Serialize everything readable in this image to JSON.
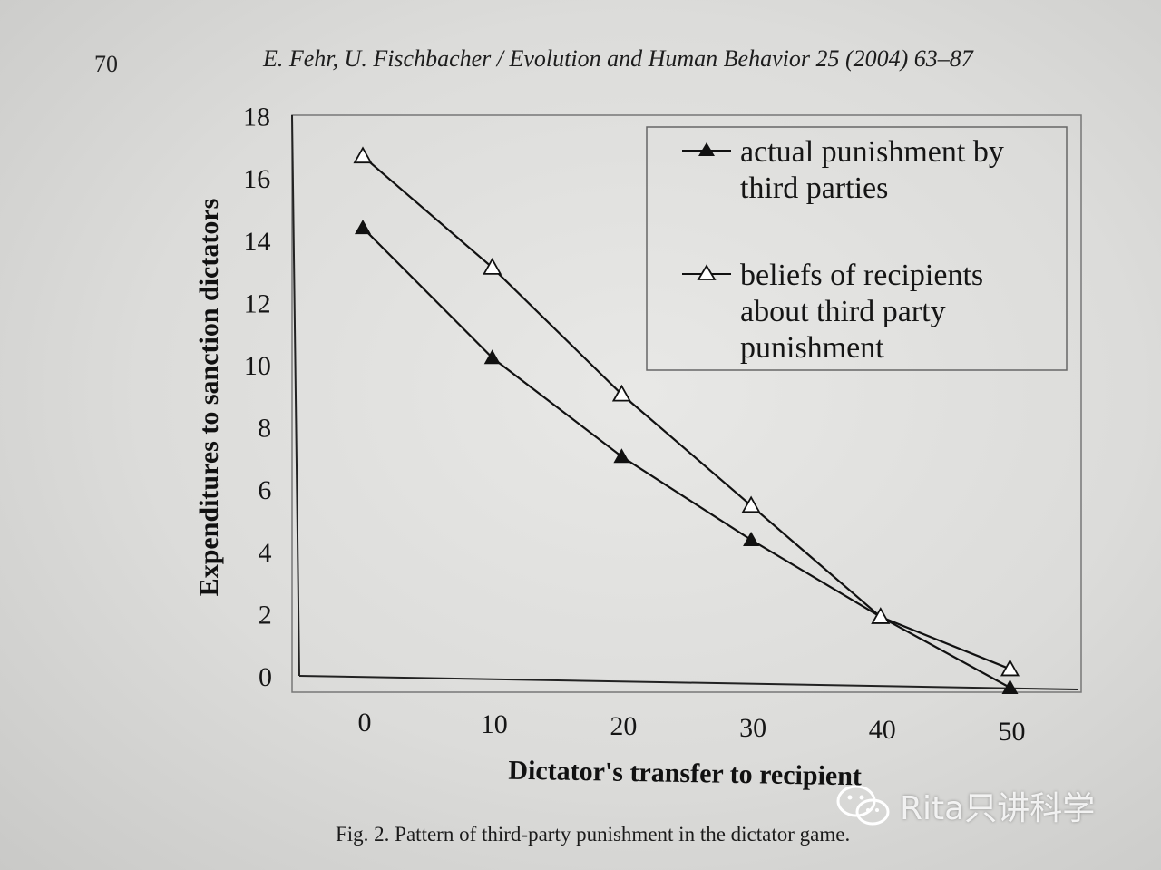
{
  "header": {
    "page_number": "70",
    "running_title": "E. Fehr, U. Fischbacher / Evolution and Human Behavior 25 (2004) 63–87"
  },
  "caption": "Fig. 2. Pattern of third-party punishment in the dictator game.",
  "watermark": {
    "text": "Rita只讲科学",
    "icon": "wechat-logo-icon"
  },
  "chart_data": {
    "type": "line",
    "xlabel": "Dictator's transfer to recipient",
    "ylabel": "Expenditures to sanction dictators",
    "x": [
      0,
      10,
      20,
      30,
      40,
      50
    ],
    "xticks": [
      "0",
      "10",
      "20",
      "30",
      "40",
      "50"
    ],
    "yticks": [
      "0",
      "2",
      "4",
      "6",
      "8",
      "10",
      "12",
      "14",
      "16",
      "18"
    ],
    "ylim": [
      0,
      18
    ],
    "grid": false,
    "legend_position": "top-right",
    "series": [
      {
        "name": "actual punishment by third parties",
        "legend_lines": [
          "actual punishment by",
          "third parties"
        ],
        "marker": "filled-triangle",
        "values": [
          14.4,
          10.3,
          7.2,
          4.6,
          2.2,
          0.0
        ]
      },
      {
        "name": "beliefs of recipients about third party punishment",
        "legend_lines": [
          "beliefs of recipients",
          "about third party",
          "punishment"
        ],
        "marker": "open-triangle",
        "values": [
          16.7,
          13.2,
          9.2,
          5.7,
          2.2,
          0.6
        ]
      }
    ],
    "colors": {
      "line": "#111111",
      "frame": "#555555"
    }
  }
}
